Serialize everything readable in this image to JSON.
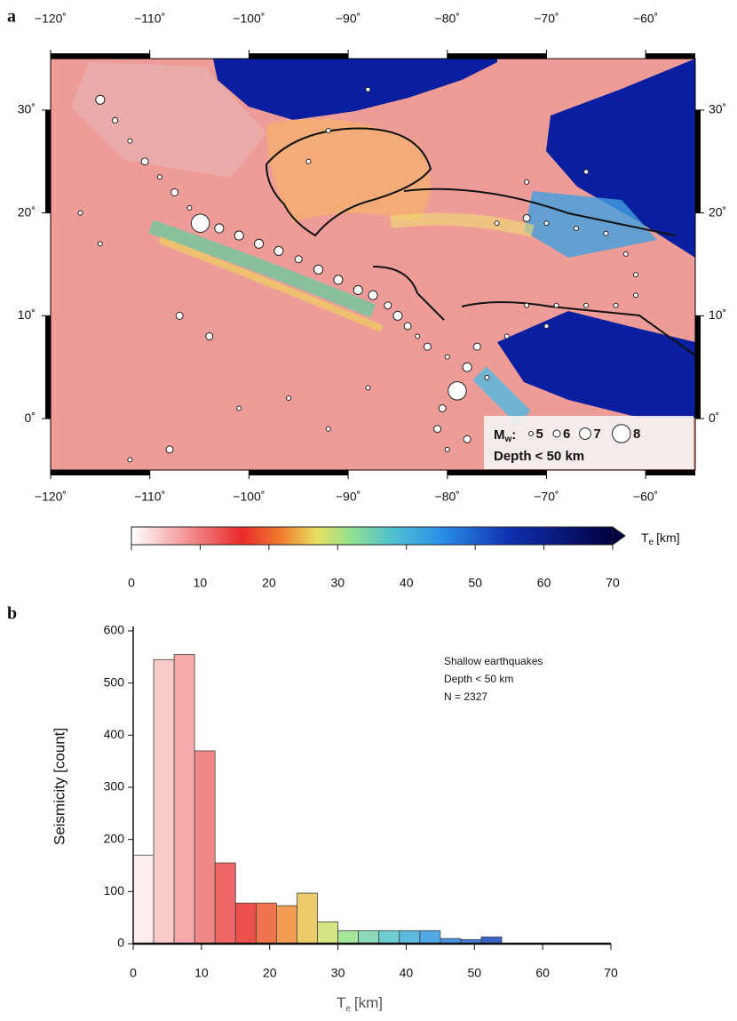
{
  "chart_data": [
    {
      "type": "map",
      "panel": "a",
      "xlim": [
        -120,
        -55
      ],
      "ylim": [
        -5,
        35
      ],
      "xticks": [
        {
          "value": -120,
          "label": "−120˚"
        },
        {
          "value": -110,
          "label": "−110˚"
        },
        {
          "value": -100,
          "label": "−100˚"
        },
        {
          "value": -90,
          "label": "−90˚"
        },
        {
          "value": -80,
          "label": "−80˚"
        },
        {
          "value": -70,
          "label": "−70˚"
        },
        {
          "value": -60,
          "label": "−60˚"
        }
      ],
      "yticks": [
        {
          "value": 0,
          "label": "0˚"
        },
        {
          "value": 10,
          "label": "10˚"
        },
        {
          "value": 20,
          "label": "20˚"
        },
        {
          "value": 30,
          "label": "30˚"
        }
      ],
      "legend_title": {
        "main": "M",
        "sub": "w",
        "colon": ":"
      },
      "legend_sizes": [
        5,
        6,
        7,
        8
      ],
      "legend_note": "Depth < 50 km",
      "earthquakes": {
        "lon": [
          -115,
          -113.5,
          -112,
          -110.5,
          -109,
          -107.5,
          -106,
          -104.9,
          -103,
          -101,
          -99,
          -97,
          -95,
          -93,
          -91,
          -89,
          -87.5,
          -86,
          -85,
          -84,
          -83,
          -82,
          -80,
          -79,
          -78,
          -77,
          -76,
          -80.5,
          -81,
          -80,
          -78,
          -75,
          -72,
          -70,
          -67,
          -64,
          -62,
          -61,
          -61,
          -63,
          -66,
          -69,
          -72,
          -92,
          -94,
          -88,
          -72,
          -66,
          -70,
          -74,
          -107,
          -104,
          -96,
          -101,
          -108,
          -112,
          -117,
          -115,
          -92,
          -88
        ],
        "lat": [
          31,
          29,
          27,
          25,
          23.5,
          22,
          20.5,
          19,
          18.5,
          17.8,
          17,
          16.3,
          15.5,
          14.5,
          13.5,
          12.5,
          12,
          11,
          10,
          9,
          8,
          7,
          6,
          2.7,
          5,
          7,
          4,
          1,
          -1,
          -3,
          -2,
          19,
          19.5,
          19,
          18.5,
          18,
          16,
          14,
          12,
          11,
          11,
          11,
          11,
          28,
          25,
          32,
          23,
          24,
          9,
          8,
          10,
          8,
          2,
          1,
          -3,
          -4,
          20,
          17,
          -1,
          3
        ],
        "mw": [
          6.5,
          5.5,
          5,
          6,
          5,
          6,
          5,
          8,
          6.5,
          6.5,
          6.5,
          6.5,
          6,
          6.5,
          6.5,
          6.5,
          6.5,
          6,
          6.5,
          6,
          5,
          6,
          5,
          8,
          6.5,
          6,
          5,
          6,
          6,
          5,
          6,
          5,
          6,
          5,
          5,
          5,
          5,
          5,
          5,
          5,
          5,
          5,
          5,
          5,
          5,
          5,
          5,
          5,
          5,
          5,
          6,
          6,
          5,
          5,
          6,
          5,
          5,
          5,
          5,
          5
        ]
      },
      "colormap": [
        {
          "value": 0,
          "color": "#ffffff"
        },
        {
          "value": 10,
          "color": "#f07a7a"
        },
        {
          "value": 16,
          "color": "#e82a2a"
        },
        {
          "value": 22,
          "color": "#f08030"
        },
        {
          "value": 27,
          "color": "#e8e060"
        },
        {
          "value": 32,
          "color": "#90e090"
        },
        {
          "value": 38,
          "color": "#50c0d0"
        },
        {
          "value": 45,
          "color": "#2a90e8"
        },
        {
          "value": 55,
          "color": "#1030b0"
        },
        {
          "value": 70,
          "color": "#000040"
        }
      ],
      "colorbar": {
        "lim": [
          0,
          70
        ],
        "ticks": [
          0,
          10,
          20,
          30,
          40,
          50,
          60,
          70
        ],
        "label": {
          "main": "T",
          "sub": "e",
          "unit": "[km]"
        }
      }
    },
    {
      "type": "histogram",
      "panel": "b",
      "bins": [
        0,
        3,
        6,
        9,
        12,
        15,
        18,
        21,
        24,
        27,
        30,
        33,
        36,
        39,
        42,
        45,
        48,
        51,
        54
      ],
      "values": [
        170,
        545,
        555,
        370,
        155,
        78,
        78,
        73,
        97,
        42,
        25,
        25,
        25,
        25,
        25,
        10,
        8,
        13
      ],
      "xlim": [
        0,
        70
      ],
      "ylim": [
        0,
        600
      ],
      "xticks": [
        0,
        10,
        20,
        30,
        40,
        50,
        60,
        70
      ],
      "yticks": [
        0,
        100,
        200,
        300,
        400,
        500,
        600
      ],
      "ylabel": "Seismicity [count]",
      "xlabel": {
        "main": "T",
        "sub": "e",
        "unit": "[km]"
      },
      "annotations": [
        "Shallow earthquakes",
        "Depth < 50 km",
        "N = 2327"
      ]
    }
  ]
}
